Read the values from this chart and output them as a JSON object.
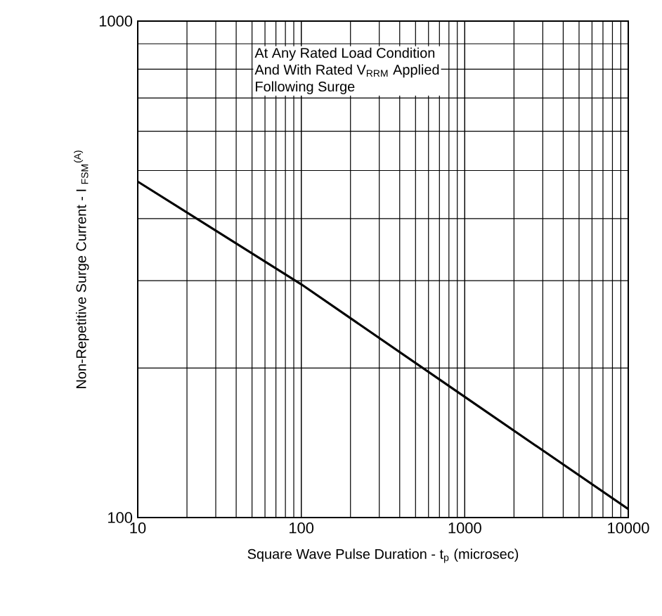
{
  "chart_data": {
    "type": "line",
    "xlabel": "Square Wave Pulse Duration - t$_{p}$ (microsec)",
    "ylabel": "Non-Repetitive Surge Current - I $_{FSM}$$^{(A)}$",
    "annotations": [
      "At Any Rated Load Condition",
      "And With Rated V$_{RRM}$ Applied",
      "Following Surge"
    ],
    "log": "xy",
    "grid": true,
    "xlim": [
      10,
      10000
    ],
    "ylim": [
      100,
      1000
    ],
    "xticks": [
      10,
      100,
      1000,
      10000
    ],
    "yticks": [
      100,
      1000
    ],
    "series": [
      {
        "color": "#000000",
        "x": [
          10,
          100,
          1000,
          10000
        ],
        "values": [
          475,
          295,
          175,
          104
        ]
      }
    ]
  }
}
